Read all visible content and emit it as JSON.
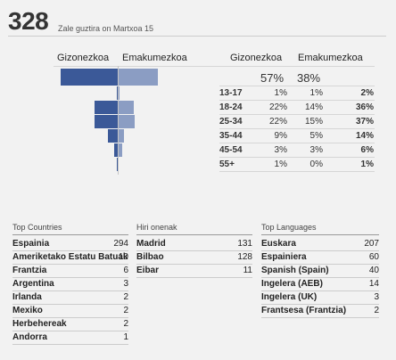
{
  "header": {
    "total": "328",
    "subtitle": "Zale guztira on Martxoa 15"
  },
  "demographics": {
    "col_male": "Gizonezkoa",
    "col_female": "Emakumezkoa",
    "summary": {
      "male_pct": "57%",
      "female_pct": "38%",
      "male_fraction": 0.57,
      "female_fraction": 0.38
    },
    "rows": [
      {
        "age": "13-17",
        "male": "1%",
        "female": "1%",
        "total": "2%",
        "male_value": 1,
        "female_value": 1
      },
      {
        "age": "18-24",
        "male": "22%",
        "female": "14%",
        "total": "36%",
        "male_value": 22,
        "female_value": 14
      },
      {
        "age": "25-34",
        "male": "22%",
        "female": "15%",
        "total": "37%",
        "male_value": 22,
        "female_value": 15
      },
      {
        "age": "35-44",
        "male": "9%",
        "female": "5%",
        "total": "14%",
        "male_value": 9,
        "female_value": 5
      },
      {
        "age": "45-54",
        "male": "3%",
        "female": "3%",
        "total": "6%",
        "male_value": 3,
        "female_value": 3
      },
      {
        "age": "55+",
        "male": "1%",
        "female": "0%",
        "total": "1%",
        "male_value": 1,
        "female_value": 0
      }
    ]
  },
  "lists": {
    "countries": {
      "title": "Top Countries",
      "items": [
        {
          "name": "Espainia",
          "count": "294"
        },
        {
          "name": "Ameriketako Estatu Batuak",
          "count": "10"
        },
        {
          "name": "Frantzia",
          "count": "6"
        },
        {
          "name": "Argentina",
          "count": "3"
        },
        {
          "name": "Irlanda",
          "count": "2"
        },
        {
          "name": "Mexiko",
          "count": "2"
        },
        {
          "name": "Herbehereak",
          "count": "2"
        },
        {
          "name": "Andorra",
          "count": "1"
        }
      ]
    },
    "cities": {
      "title": "Hiri onenak",
      "items": [
        {
          "name": "Madrid",
          "count": "131"
        },
        {
          "name": "Bilbao",
          "count": "128"
        },
        {
          "name": "Eibar",
          "count": "11"
        }
      ]
    },
    "languages": {
      "title": "Top Languages",
      "items": [
        {
          "name": "Euskara",
          "count": "207"
        },
        {
          "name": "Espainiera",
          "count": "60"
        },
        {
          "name": "Spanish (Spain)",
          "count": "40"
        },
        {
          "name": "Ingelera (AEB)",
          "count": "14"
        },
        {
          "name": "Ingelera (UK)",
          "count": "3"
        },
        {
          "name": "Frantsesa (Frantzia)",
          "count": "2"
        }
      ]
    }
  },
  "colors": {
    "male": "#3b5998",
    "female": "#8b9dc3"
  }
}
